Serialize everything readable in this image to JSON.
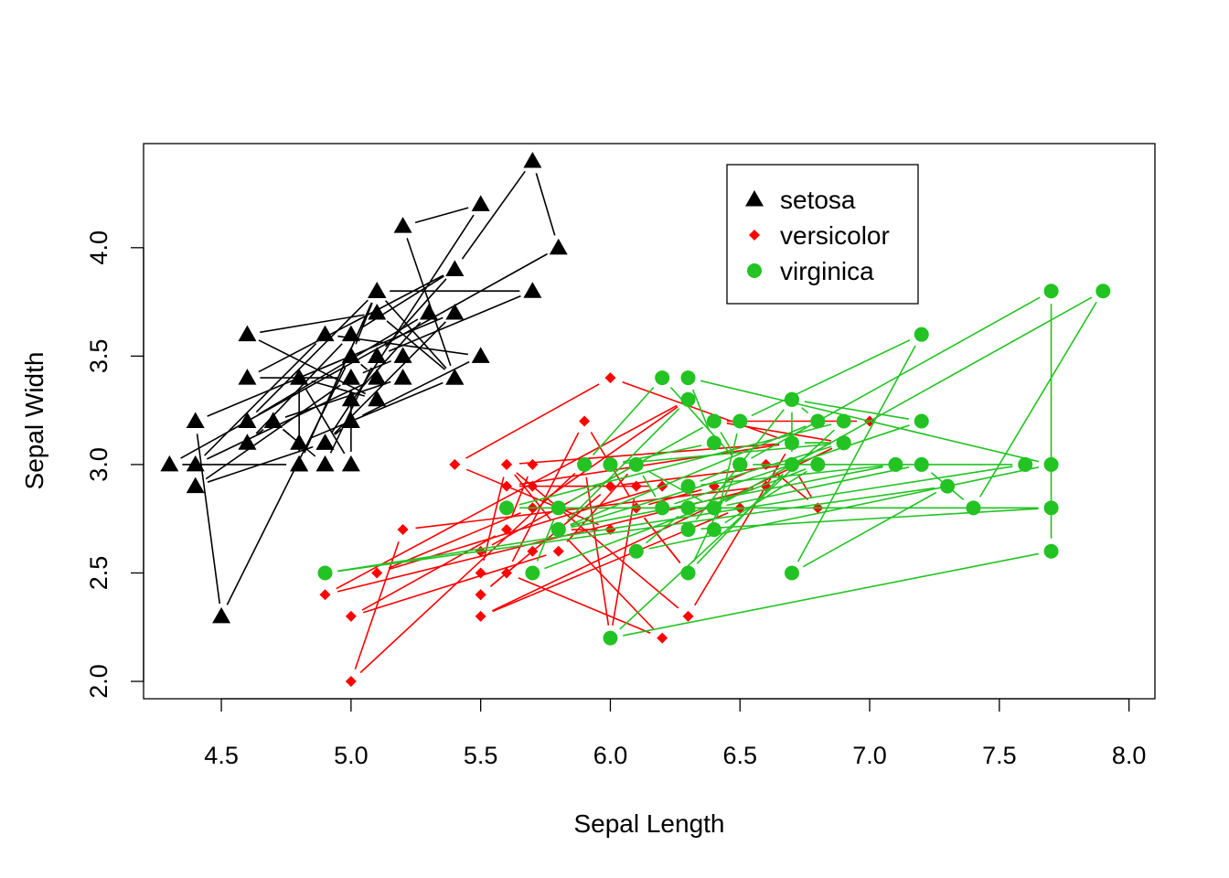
{
  "chart_data": {
    "type": "line",
    "title": "",
    "xlabel": "Sepal Length",
    "ylabel": "Sepal Width",
    "xlim": [
      4.2,
      8.1
    ],
    "ylim": [
      1.92,
      4.48
    ],
    "xticks": [
      4.5,
      5.0,
      5.5,
      6.0,
      6.5,
      7.0,
      7.5,
      8.0
    ],
    "xtick_labels": [
      "4.5",
      "5.0",
      "5.5",
      "6.0",
      "6.5",
      "7.0",
      "7.5",
      "8.0"
    ],
    "yticks": [
      2.0,
      2.5,
      3.0,
      3.5,
      4.0
    ],
    "ytick_labels": [
      "2.0",
      "2.5",
      "3.0",
      "3.5",
      "4.0"
    ],
    "grid": false,
    "legend_position": "top-right",
    "series": [
      {
        "name": "setosa",
        "color": "#000000",
        "marker": "triangle",
        "points": [
          [
            5.1,
            3.5
          ],
          [
            4.9,
            3.0
          ],
          [
            4.7,
            3.2
          ],
          [
            4.6,
            3.1
          ],
          [
            5.0,
            3.6
          ],
          [
            5.4,
            3.9
          ],
          [
            4.6,
            3.4
          ],
          [
            5.0,
            3.4
          ],
          [
            4.4,
            2.9
          ],
          [
            4.9,
            3.1
          ],
          [
            5.4,
            3.7
          ],
          [
            4.8,
            3.4
          ],
          [
            4.8,
            3.0
          ],
          [
            4.3,
            3.0
          ],
          [
            5.8,
            4.0
          ],
          [
            5.7,
            4.4
          ],
          [
            5.4,
            3.9
          ],
          [
            5.1,
            3.5
          ],
          [
            5.7,
            3.8
          ],
          [
            5.1,
            3.8
          ],
          [
            5.4,
            3.4
          ],
          [
            5.1,
            3.7
          ],
          [
            4.6,
            3.6
          ],
          [
            5.1,
            3.3
          ],
          [
            4.8,
            3.4
          ],
          [
            5.0,
            3.0
          ],
          [
            5.0,
            3.4
          ],
          [
            5.2,
            3.5
          ],
          [
            5.2,
            3.4
          ],
          [
            4.7,
            3.2
          ],
          [
            4.8,
            3.1
          ],
          [
            5.4,
            3.4
          ],
          [
            5.2,
            4.1
          ],
          [
            5.5,
            4.2
          ],
          [
            4.9,
            3.1
          ],
          [
            5.0,
            3.2
          ],
          [
            5.5,
            3.5
          ],
          [
            4.9,
            3.6
          ],
          [
            4.4,
            3.0
          ],
          [
            5.1,
            3.4
          ],
          [
            5.0,
            3.5
          ],
          [
            4.5,
            2.3
          ],
          [
            4.4,
            3.2
          ],
          [
            5.0,
            3.5
          ],
          [
            5.1,
            3.8
          ],
          [
            4.8,
            3.0
          ],
          [
            5.1,
            3.8
          ],
          [
            4.6,
            3.2
          ],
          [
            5.3,
            3.7
          ],
          [
            5.0,
            3.3
          ]
        ]
      },
      {
        "name": "versicolor",
        "color": "#ff0000",
        "marker": "diamond",
        "points": [
          [
            7.0,
            3.2
          ],
          [
            6.4,
            3.2
          ],
          [
            6.9,
            3.1
          ],
          [
            5.5,
            2.3
          ],
          [
            6.5,
            2.8
          ],
          [
            5.7,
            2.8
          ],
          [
            6.3,
            3.3
          ],
          [
            4.9,
            2.4
          ],
          [
            6.6,
            2.9
          ],
          [
            5.2,
            2.7
          ],
          [
            5.0,
            2.0
          ],
          [
            5.9,
            3.0
          ],
          [
            6.0,
            2.2
          ],
          [
            6.1,
            2.9
          ],
          [
            5.6,
            2.9
          ],
          [
            6.7,
            3.1
          ],
          [
            5.6,
            3.0
          ],
          [
            5.8,
            2.7
          ],
          [
            6.2,
            2.2
          ],
          [
            5.6,
            2.5
          ],
          [
            5.9,
            3.2
          ],
          [
            6.1,
            2.8
          ],
          [
            6.3,
            2.5
          ],
          [
            6.1,
            2.8
          ],
          [
            6.4,
            2.9
          ],
          [
            6.6,
            3.0
          ],
          [
            6.8,
            2.8
          ],
          [
            6.7,
            3.0
          ],
          [
            6.0,
            2.9
          ],
          [
            5.7,
            2.6
          ],
          [
            5.5,
            2.4
          ],
          [
            5.5,
            2.4
          ],
          [
            5.8,
            2.7
          ],
          [
            6.0,
            2.7
          ],
          [
            5.4,
            3.0
          ],
          [
            6.0,
            3.4
          ],
          [
            6.7,
            3.1
          ],
          [
            6.3,
            2.3
          ],
          [
            5.6,
            3.0
          ],
          [
            5.5,
            2.5
          ],
          [
            5.5,
            2.6
          ],
          [
            6.1,
            3.0
          ],
          [
            5.8,
            2.6
          ],
          [
            5.0,
            2.3
          ],
          [
            5.6,
            2.7
          ],
          [
            5.7,
            3.0
          ],
          [
            5.7,
            2.9
          ],
          [
            6.2,
            2.9
          ],
          [
            5.1,
            2.5
          ],
          [
            5.7,
            2.8
          ]
        ]
      },
      {
        "name": "virginica",
        "color": "#22c322",
        "marker": "circle",
        "points": [
          [
            6.3,
            3.3
          ],
          [
            5.8,
            2.7
          ],
          [
            7.1,
            3.0
          ],
          [
            6.3,
            2.9
          ],
          [
            6.5,
            3.0
          ],
          [
            7.6,
            3.0
          ],
          [
            4.9,
            2.5
          ],
          [
            7.3,
            2.9
          ],
          [
            6.7,
            2.5
          ],
          [
            7.2,
            3.6
          ],
          [
            6.5,
            3.2
          ],
          [
            6.4,
            2.7
          ],
          [
            6.8,
            3.0
          ],
          [
            5.7,
            2.5
          ],
          [
            5.8,
            2.8
          ],
          [
            6.4,
            3.2
          ],
          [
            6.5,
            3.0
          ],
          [
            7.7,
            3.8
          ],
          [
            7.7,
            2.6
          ],
          [
            6.0,
            2.2
          ],
          [
            6.9,
            3.2
          ],
          [
            5.6,
            2.8
          ],
          [
            7.7,
            2.8
          ],
          [
            6.3,
            2.7
          ],
          [
            6.7,
            3.3
          ],
          [
            7.2,
            3.2
          ],
          [
            6.2,
            2.8
          ],
          [
            6.1,
            3.0
          ],
          [
            6.4,
            2.8
          ],
          [
            7.2,
            3.0
          ],
          [
            7.4,
            2.8
          ],
          [
            7.9,
            3.8
          ],
          [
            6.4,
            2.8
          ],
          [
            6.3,
            2.8
          ],
          [
            6.1,
            2.6
          ],
          [
            7.7,
            3.0
          ],
          [
            6.3,
            3.4
          ],
          [
            6.4,
            3.1
          ],
          [
            6.0,
            3.0
          ],
          [
            6.9,
            3.1
          ],
          [
            6.7,
            3.1
          ],
          [
            6.9,
            3.1
          ],
          [
            5.8,
            2.7
          ],
          [
            6.8,
            3.2
          ],
          [
            6.7,
            3.3
          ],
          [
            6.7,
            3.0
          ],
          [
            6.3,
            2.5
          ],
          [
            6.5,
            3.0
          ],
          [
            6.2,
            3.4
          ],
          [
            5.9,
            3.0
          ]
        ]
      }
    ]
  }
}
